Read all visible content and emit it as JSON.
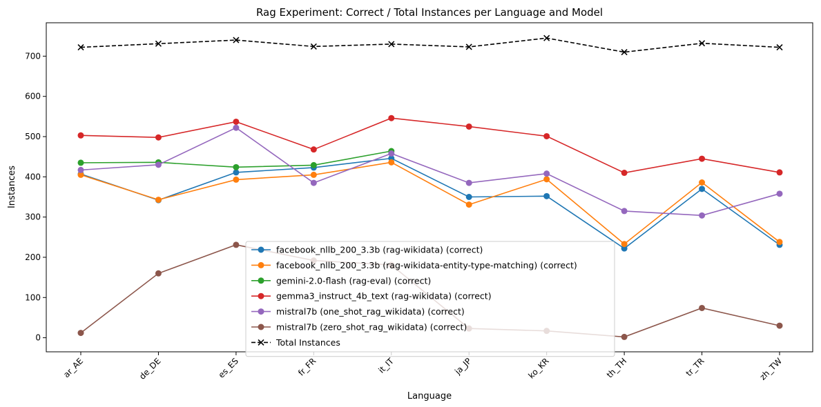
{
  "chart_data": {
    "type": "line",
    "title": "Rag Experiment: Correct / Total Instances per Language and Model",
    "xlabel": "Language",
    "ylabel": "Instances",
    "categories": [
      "ar_AE",
      "de_DE",
      "es_ES",
      "fr_FR",
      "it_IT",
      "ja_JP",
      "ko_KR",
      "th_TH",
      "tr_TR",
      "zh_TW"
    ],
    "ylim": [
      -35,
      783
    ],
    "yticks": [
      0,
      100,
      200,
      300,
      400,
      500,
      600,
      700
    ],
    "grid": false,
    "legend_position": "lower-center",
    "series": [
      {
        "name": "facebook_nllb_200_3.3b (rag-wikidata) (correct)",
        "color": "#1f77b4",
        "marker": "circle",
        "dashed": false,
        "values": [
          407,
          342,
          411,
          423,
          446,
          350,
          352,
          222,
          370,
          231
        ]
      },
      {
        "name": "facebook_nllb_200_3.3b (rag-wikidata-entity-type-matching) (correct)",
        "color": "#ff7f0e",
        "marker": "circle",
        "dashed": false,
        "values": [
          405,
          343,
          393,
          405,
          436,
          331,
          394,
          233,
          386,
          238
        ]
      },
      {
        "name": "gemini-2.0-flash (rag-eval) (correct)",
        "color": "#2ca02c",
        "marker": "circle",
        "dashed": false,
        "values": [
          435,
          436,
          424,
          429,
          464,
          null,
          null,
          null,
          null,
          null
        ]
      },
      {
        "name": "gemma3_instruct_4b_text (rag-wikidata) (correct)",
        "color": "#d62728",
        "marker": "circle",
        "dashed": false,
        "values": [
          503,
          498,
          537,
          468,
          546,
          525,
          501,
          410,
          445,
          411
        ]
      },
      {
        "name": "mistral7b (one_shot_rag_wikidata) (correct)",
        "color": "#9467bd",
        "marker": "circle",
        "dashed": false,
        "values": [
          417,
          430,
          522,
          385,
          458,
          385,
          408,
          315,
          304,
          358
        ]
      },
      {
        "name": "mistral7b (zero_shot_rag_wikidata) (correct)",
        "color": "#8c564b",
        "marker": "circle",
        "dashed": false,
        "values": [
          12,
          160,
          231,
          192,
          181,
          23,
          17,
          2,
          74,
          30
        ]
      },
      {
        "name": "Total Instances",
        "color": "#000000",
        "marker": "x",
        "dashed": true,
        "values": [
          722,
          731,
          740,
          724,
          730,
          723,
          745,
          710,
          732,
          722
        ]
      }
    ]
  }
}
